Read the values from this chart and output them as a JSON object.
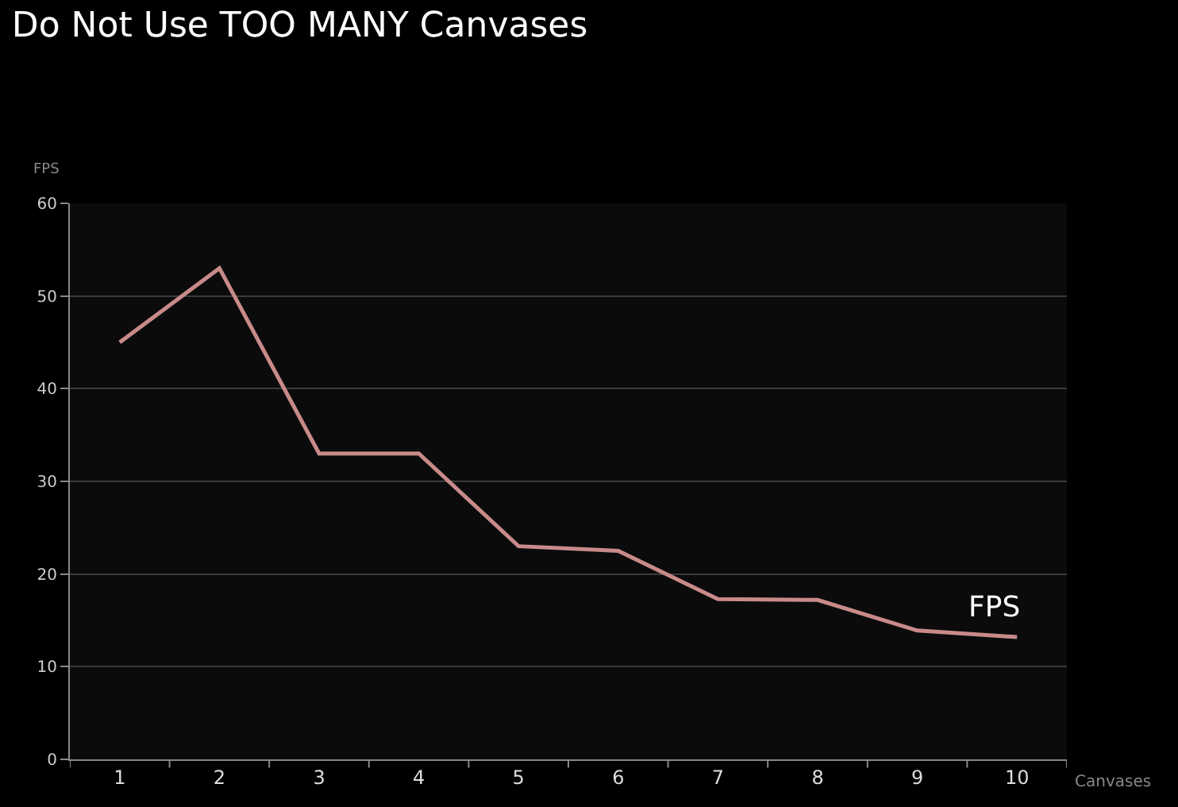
{
  "chart_data": {
    "type": "line",
    "title": "Do Not Use TOO MANY Canvases",
    "xlabel": "Canvases",
    "ylabel": "FPS",
    "categories": [
      "1",
      "2",
      "3",
      "4",
      "5",
      "6",
      "7",
      "8",
      "9",
      "10"
    ],
    "series": [
      {
        "name": "FPS",
        "color": "#c98a8a",
        "values": [
          45,
          53,
          33,
          33,
          23,
          22.5,
          17.3,
          17.2,
          13.9,
          13.2
        ]
      }
    ],
    "ylim": [
      0,
      60
    ],
    "yticks": [
      0,
      10,
      20,
      30,
      40,
      50,
      60
    ],
    "grid": "y",
    "legend": false,
    "marker": "none",
    "line_style": "solid"
  }
}
